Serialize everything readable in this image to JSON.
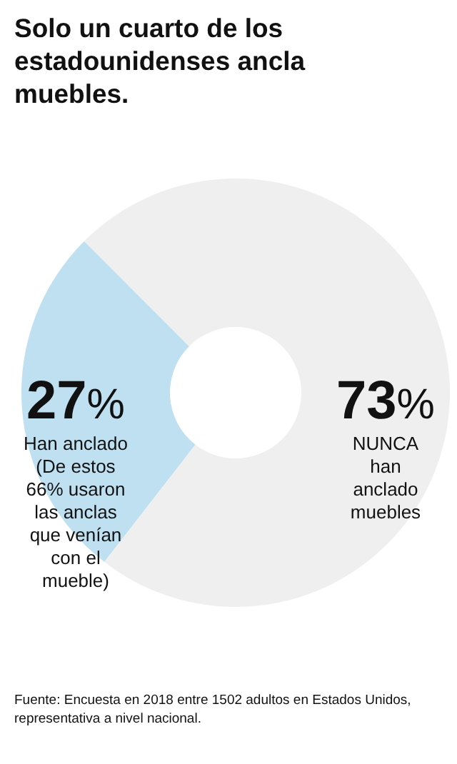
{
  "chart_data": {
    "type": "donut",
    "title": "Solo un cuarto de los estadounidenses ancla muebles.",
    "categories": [
      "Han anclado (De estos 66% usaron las anclas que venían con el mueble)",
      "NUNCA han anclado muebles"
    ],
    "values": [
      27,
      73
    ],
    "colors": [
      "#bfe0f1",
      "#efefef"
    ],
    "value_labels": [
      "27%",
      "73%"
    ],
    "annotations": [
      "Fuente: Encuesta en 2018 entre 1502 adultos en Estados Unidos, representativa a nivel nacional."
    ]
  }
}
